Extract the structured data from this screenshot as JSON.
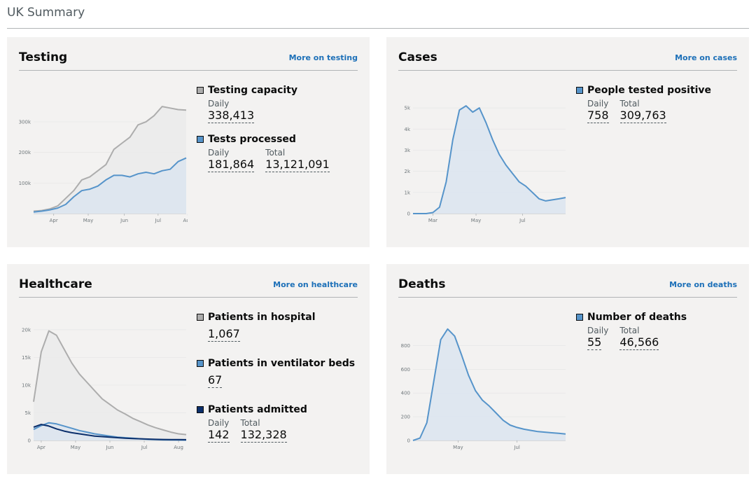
{
  "page": {
    "title": "UK Summary"
  },
  "colors": {
    "grey_line": "#adadad",
    "grey_fill": "#ebebeb",
    "blue_line": "#5694ca",
    "blue_fill": "#dde6f0",
    "navy_line": "#0b2f6b",
    "link": "#1d70b8",
    "background": "#f3f2f1"
  },
  "cards": {
    "testing": {
      "title": "Testing",
      "link": "More on testing",
      "metrics": {
        "capacity": {
          "label": "Testing capacity",
          "daily_label": "Daily",
          "daily": "338,413"
        },
        "processed": {
          "label": "Tests processed",
          "daily_label": "Daily",
          "daily": "181,864",
          "total_label": "Total",
          "total": "13,121,091"
        }
      }
    },
    "cases": {
      "title": "Cases",
      "link": "More on cases",
      "metrics": {
        "positive": {
          "label": "People tested positive",
          "daily_label": "Daily",
          "daily": "758",
          "total_label": "Total",
          "total": "309,763"
        }
      }
    },
    "healthcare": {
      "title": "Healthcare",
      "link": "More on healthcare",
      "metrics": {
        "hospital": {
          "label": "Patients in hospital",
          "value": "1,067"
        },
        "ventilator": {
          "label": "Patients in ventilator beds",
          "value": "67"
        },
        "admitted": {
          "label": "Patients admitted",
          "daily_label": "Daily",
          "daily": "142",
          "total_label": "Total",
          "total": "132,328"
        }
      }
    },
    "deaths": {
      "title": "Deaths",
      "link": "More on deaths",
      "metrics": {
        "deaths": {
          "label": "Number of deaths",
          "daily_label": "Daily",
          "daily": "55",
          "total_label": "Total",
          "total": "46,566"
        }
      }
    }
  },
  "chart_data": [
    {
      "id": "testing",
      "type": "area",
      "x": [
        0,
        1,
        2,
        3,
        4,
        5,
        6,
        7,
        8,
        9,
        10,
        11,
        12,
        13,
        14,
        15,
        16,
        17,
        18,
        19
      ],
      "xticks": [
        {
          "x": 2.5,
          "label": "Apr"
        },
        {
          "x": 6.8,
          "label": "May"
        },
        {
          "x": 11.3,
          "label": "Jun"
        },
        {
          "x": 15.5,
          "label": "Jul"
        },
        {
          "x": 19.2,
          "label": "Aug"
        }
      ],
      "yticks": [
        {
          "y": 100000,
          "label": "100k"
        },
        {
          "y": 200000,
          "label": "200k"
        },
        {
          "y": 300000,
          "label": "300k"
        }
      ],
      "ylim": [
        0,
        380000
      ],
      "series": [
        {
          "name": "Testing capacity",
          "color": "grey",
          "values": [
            8000,
            10000,
            15000,
            25000,
            50000,
            75000,
            110000,
            120000,
            140000,
            160000,
            210000,
            230000,
            250000,
            290000,
            300000,
            320000,
            350000,
            345000,
            340000,
            338413
          ]
        },
        {
          "name": "Tests processed",
          "color": "blue",
          "values": [
            5000,
            8000,
            12000,
            18000,
            30000,
            55000,
            75000,
            80000,
            90000,
            110000,
            125000,
            125000,
            120000,
            130000,
            135000,
            130000,
            140000,
            145000,
            170000,
            181864
          ]
        }
      ]
    },
    {
      "id": "cases",
      "type": "area",
      "x": [
        0,
        1,
        2,
        3,
        4,
        5,
        6,
        7,
        8,
        9,
        10,
        11,
        12,
        13,
        14,
        15,
        16,
        17,
        18,
        19,
        20,
        21,
        22,
        23
      ],
      "xticks": [
        {
          "x": 3,
          "label": "Mar"
        },
        {
          "x": 9.5,
          "label": "May"
        },
        {
          "x": 16.5,
          "label": "Jul"
        }
      ],
      "yticks": [
        {
          "y": 0,
          "label": "0"
        },
        {
          "y": 1000,
          "label": "1k"
        },
        {
          "y": 2000,
          "label": "2k"
        },
        {
          "y": 3000,
          "label": "3k"
        },
        {
          "y": 4000,
          "label": "4k"
        },
        {
          "y": 5000,
          "label": "5k"
        }
      ],
      "ylim": [
        0,
        5500
      ],
      "series": [
        {
          "name": "People tested positive",
          "color": "blue",
          "values": [
            0,
            0,
            0,
            50,
            300,
            1500,
            3500,
            4900,
            5100,
            4800,
            5000,
            4300,
            3500,
            2800,
            2300,
            1900,
            1500,
            1300,
            1000,
            700,
            600,
            650,
            700,
            758
          ]
        }
      ]
    },
    {
      "id": "healthcare",
      "type": "area",
      "x": [
        0,
        1,
        2,
        3,
        4,
        5,
        6,
        7,
        8,
        9,
        10,
        11,
        12,
        13,
        14,
        15,
        16,
        17,
        18,
        19,
        20
      ],
      "xticks": [
        {
          "x": 1,
          "label": "Apr"
        },
        {
          "x": 5.5,
          "label": "May"
        },
        {
          "x": 10,
          "label": "Jun"
        },
        {
          "x": 14.5,
          "label": "Jul"
        },
        {
          "x": 19,
          "label": "Aug"
        }
      ],
      "yticks": [
        {
          "y": 0,
          "label": "0"
        },
        {
          "y": 5000,
          "label": "5k"
        },
        {
          "y": 10000,
          "label": "10k"
        },
        {
          "y": 15000,
          "label": "15k"
        },
        {
          "y": 20000,
          "label": "20k"
        }
      ],
      "ylim": [
        0,
        21000
      ],
      "series": [
        {
          "name": "Patients in hospital",
          "color": "grey",
          "values": [
            7000,
            16000,
            19800,
            19000,
            16500,
            14000,
            12000,
            10500,
            9000,
            7500,
            6500,
            5500,
            4800,
            4000,
            3400,
            2800,
            2300,
            1900,
            1500,
            1200,
            1067
          ]
        },
        {
          "name": "Patients in ventilator beds",
          "color": "blue",
          "values": [
            2000,
            2700,
            3200,
            3000,
            2600,
            2200,
            1800,
            1500,
            1200,
            1000,
            800,
            600,
            500,
            400,
            300,
            200,
            150,
            120,
            90,
            75,
            67
          ]
        },
        {
          "name": "Patients admitted",
          "color": "navy",
          "values": [
            2400,
            2900,
            2600,
            2100,
            1700,
            1400,
            1200,
            1000,
            800,
            700,
            600,
            500,
            400,
            350,
            300,
            250,
            200,
            180,
            160,
            150,
            142
          ]
        }
      ]
    },
    {
      "id": "deaths",
      "type": "area",
      "x": [
        0,
        1,
        2,
        3,
        4,
        5,
        6,
        7,
        8,
        9,
        10,
        11,
        12,
        13,
        14,
        15,
        16,
        17,
        18,
        19,
        20,
        21,
        22
      ],
      "xticks": [
        {
          "x": 6.5,
          "label": "May"
        },
        {
          "x": 15,
          "label": "Jul"
        }
      ],
      "yticks": [
        {
          "y": 0,
          "label": "0"
        },
        {
          "y": 200,
          "label": "200"
        },
        {
          "y": 400,
          "label": "400"
        },
        {
          "y": 600,
          "label": "600"
        },
        {
          "y": 800,
          "label": "800"
        }
      ],
      "ylim": [
        0,
        980
      ],
      "series": [
        {
          "name": "Number of deaths",
          "color": "blue",
          "values": [
            0,
            20,
            150,
            500,
            850,
            940,
            880,
            720,
            550,
            420,
            340,
            290,
            230,
            170,
            130,
            110,
            95,
            85,
            75,
            70,
            65,
            60,
            55
          ]
        }
      ]
    }
  ]
}
